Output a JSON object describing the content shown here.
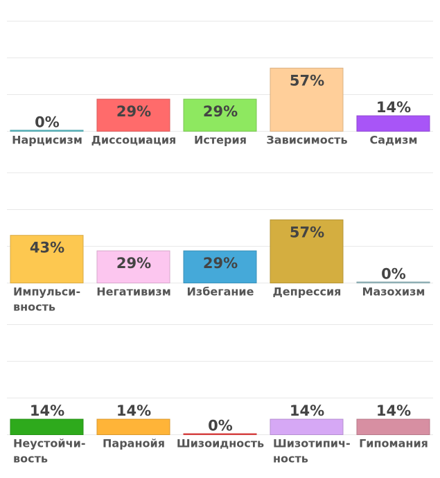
{
  "chart_data": [
    {
      "type": "bar",
      "categories": [
        "Нарцисизм",
        "Диссоциация",
        "Истерия",
        "Зависимость",
        "Садизм"
      ],
      "values": [
        0,
        29,
        29,
        57,
        14
      ],
      "value_labels": [
        "0%",
        "29%",
        "29%",
        "57%",
        "14%"
      ],
      "colors": [
        "#5bc0c8",
        "#ff6b6b",
        "#8ee860",
        "#ffcf9a",
        "#a855f7"
      ],
      "ylim": [
        0,
        100
      ],
      "grid": true
    },
    {
      "type": "bar",
      "categories": [
        "Импульси-вность",
        "Негативизм",
        "Избегание",
        "Депрессия",
        "Мазохизм"
      ],
      "category_lines": [
        [
          "Импульси-",
          "вность"
        ],
        [
          "Негативизм"
        ],
        [
          "Избегание"
        ],
        [
          "Депрессия"
        ],
        [
          "Мазохизм"
        ]
      ],
      "values": [
        43,
        29,
        29,
        57,
        0
      ],
      "value_labels": [
        "43%",
        "29%",
        "29%",
        "57%",
        "0%"
      ],
      "colors": [
        "#fdc850",
        "#fcc6ef",
        "#45a9d9",
        "#d4ae40",
        "#9fc3c9"
      ],
      "ylim": [
        0,
        100
      ],
      "grid": true
    },
    {
      "type": "bar",
      "categories": [
        "Неустойчи-вость",
        "Паранойя",
        "Шизоидность",
        "Шизотипич-ность",
        "Гипомания"
      ],
      "category_lines": [
        [
          "Неустойчи-",
          "вость"
        ],
        [
          "Паранойя"
        ],
        [
          "Шизоидность"
        ],
        [
          "Шизотипич-",
          "ность"
        ],
        [
          "Гипомания"
        ]
      ],
      "values": [
        14,
        14,
        0,
        14,
        14
      ],
      "value_labels": [
        "14%",
        "14%",
        "0%",
        "14%",
        "14%"
      ],
      "colors": [
        "#2eaa1c",
        "#ffb438",
        "#f04a4a",
        "#d6a8f5",
        "#d78fa2"
      ],
      "ylim": [
        0,
        100
      ],
      "grid": true
    }
  ]
}
